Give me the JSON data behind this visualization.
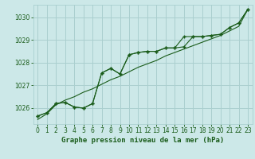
{
  "title": "Graphe pression niveau de la mer (hPa)",
  "background_color": "#cce8e8",
  "grid_color": "#aacfcf",
  "line_color": "#1a5c1a",
  "xlim": [
    -0.5,
    23.5
  ],
  "ylim": [
    1025.3,
    1030.55
  ],
  "yticks": [
    1026,
    1027,
    1028,
    1029,
    1030
  ],
  "xticks": [
    0,
    1,
    2,
    3,
    4,
    5,
    6,
    7,
    8,
    9,
    10,
    11,
    12,
    13,
    14,
    15,
    16,
    17,
    18,
    19,
    20,
    21,
    22,
    23
  ],
  "series1_marked": [
    1025.65,
    1025.8,
    1026.2,
    1026.25,
    1026.05,
    1026.0,
    1026.2,
    1027.55,
    1027.75,
    1027.5,
    1028.35,
    1028.45,
    1028.5,
    1028.5,
    1028.65,
    1028.65,
    1028.7,
    1029.15,
    1029.15,
    1029.2,
    1029.25,
    1029.55,
    1029.75,
    1030.35
  ],
  "series2_marked": [
    1025.65,
    1025.8,
    1026.2,
    1026.25,
    1026.05,
    1026.0,
    1026.2,
    1027.55,
    1027.75,
    1027.5,
    1028.35,
    1028.45,
    1028.5,
    1028.5,
    1028.65,
    1028.65,
    1029.15,
    1029.15,
    1029.15,
    1029.2,
    1029.25,
    1029.55,
    1029.75,
    1030.35
  ],
  "series3_smooth": [
    1025.5,
    1025.75,
    1026.15,
    1026.35,
    1026.5,
    1026.7,
    1026.85,
    1027.05,
    1027.25,
    1027.4,
    1027.6,
    1027.8,
    1027.95,
    1028.1,
    1028.3,
    1028.45,
    1028.6,
    1028.75,
    1028.9,
    1029.05,
    1029.2,
    1029.4,
    1029.6,
    1030.35
  ]
}
